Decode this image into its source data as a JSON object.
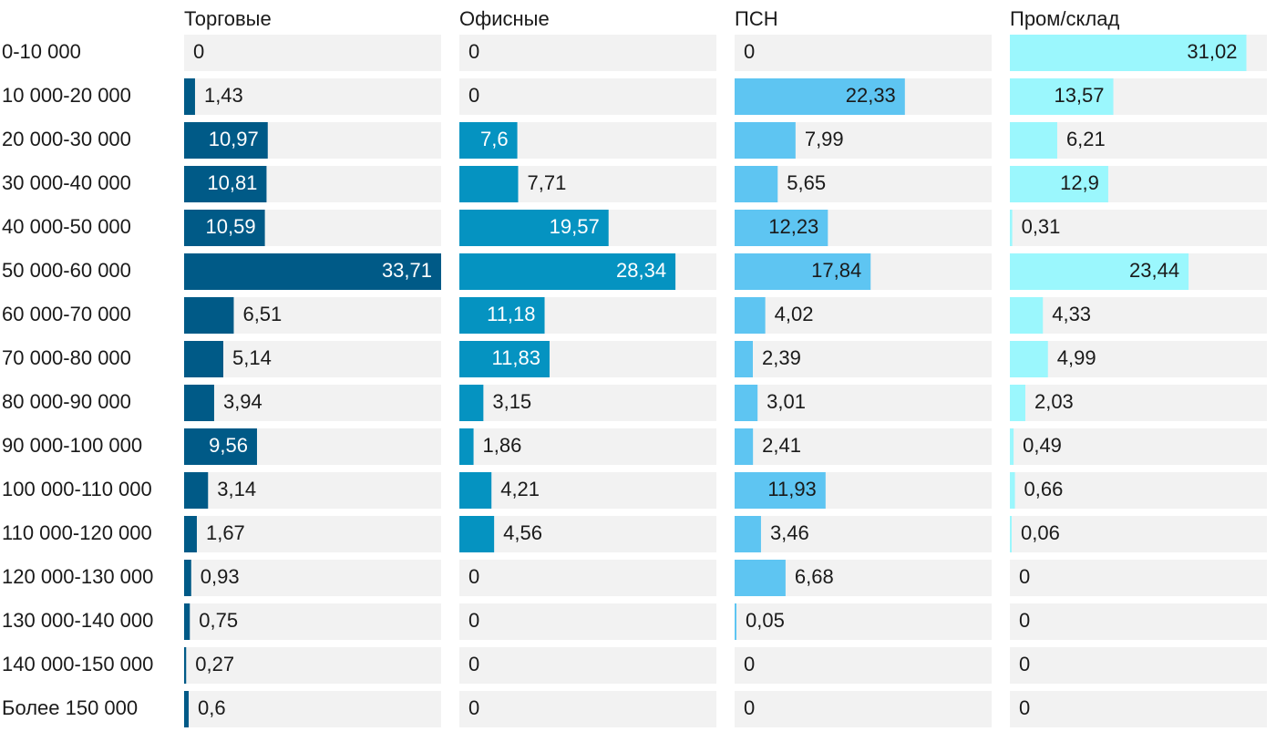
{
  "chart_data": {
    "type": "bar",
    "orientation": "horizontal",
    "layout": "small-multiples",
    "title": "",
    "xlabel": "",
    "ylabel": "",
    "max_scale": 33.71,
    "categories": [
      "0-10 000",
      "10 000-20 000",
      "20 000-30 000",
      "30 000-40 000",
      "40 000-50 000",
      "50 000-60 000",
      "60 000-70 000",
      "70 000-80 000",
      "80 000-90 000",
      "90 000-100 000",
      "100 000-110 000",
      "110 000-120 000",
      "120 000-130 000",
      "130 000-140 000",
      "140 000-150 000",
      "Более 150 000"
    ],
    "series": [
      {
        "name": "Торговые",
        "color": "#005a87",
        "values": [
          0,
          1.43,
          10.97,
          10.81,
          10.59,
          33.71,
          6.51,
          5.14,
          3.94,
          9.56,
          3.14,
          1.67,
          0.93,
          0.75,
          0.27,
          0.6
        ],
        "labels": [
          "0",
          "1,43",
          "10,97",
          "10,81",
          "10,59",
          "33,71",
          "6,51",
          "5,14",
          "3,94",
          "9,56",
          "3,14",
          "1,67",
          "0,93",
          "0,75",
          "0,27",
          "0,6"
        ]
      },
      {
        "name": "Офисные",
        "color": "#0593c1",
        "values": [
          0,
          0,
          7.6,
          7.71,
          19.57,
          28.34,
          11.18,
          11.83,
          3.15,
          1.86,
          4.21,
          4.56,
          0,
          0,
          0,
          0
        ],
        "labels": [
          "0",
          "0",
          "7,6",
          "7,71",
          "19,57",
          "28,34",
          "11,18",
          "11,83",
          "3,15",
          "1,86",
          "4,21",
          "4,56",
          "0",
          "0",
          "0",
          "0"
        ]
      },
      {
        "name": "ПСН",
        "color": "#5ec5f2",
        "values": [
          0,
          22.33,
          7.99,
          5.65,
          12.23,
          17.84,
          4.02,
          2.39,
          3.01,
          2.41,
          11.93,
          3.46,
          6.68,
          0.05,
          0,
          0
        ],
        "labels": [
          "0",
          "22,33",
          "7,99",
          "5,65",
          "12,23",
          "17,84",
          "4,02",
          "2,39",
          "3,01",
          "2,41",
          "11,93",
          "3,46",
          "6,68",
          "0,05",
          "0",
          "0"
        ]
      },
      {
        "name": "Пром/склад",
        "color": "#9bf7fd",
        "values": [
          31.02,
          13.57,
          6.21,
          12.9,
          0.31,
          23.44,
          4.33,
          4.99,
          2.03,
          0.49,
          0.66,
          0.06,
          0,
          0,
          0,
          0
        ],
        "labels": [
          "31,02",
          "13,57",
          "6,21",
          "12,9",
          "0,31",
          "23,44",
          "4,33",
          "4,99",
          "2,03",
          "0,49",
          "0,66",
          "0,06",
          "0",
          "0",
          "0",
          "0"
        ]
      }
    ],
    "label_color_inside_dark": "#ffffff",
    "label_color_inside_light": "#1a1a1a",
    "label_color_outside": "#1a1a1a",
    "track_color": "#f2f2f2"
  }
}
